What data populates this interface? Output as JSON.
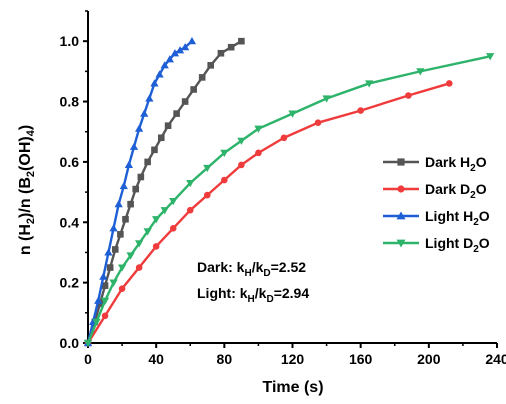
{
  "chart_data": {
    "type": "line",
    "title": "",
    "xlabel": "Time (s)",
    "ylabel": {
      "parts": [
        "n (H",
        "2",
        ")/n (B",
        "2",
        "(OH)",
        "4",
        ")"
      ]
    },
    "xlim": [
      0,
      240
    ],
    "ylim": [
      0,
      1.1
    ],
    "xticks": [
      "0",
      "40",
      "80",
      "120",
      "160",
      "200",
      "240"
    ],
    "yticks": [
      "0.0",
      "0.2",
      "0.4",
      "0.6",
      "0.8",
      "1.0"
    ],
    "legend_position": "right",
    "series": [
      {
        "name": "Dark H2O",
        "label_parts": [
          "Dark H",
          "2",
          "O"
        ],
        "color": "#555555",
        "marker": "square",
        "x": [
          0,
          4,
          7,
          10,
          13,
          16,
          19,
          22,
          25,
          28,
          31,
          35,
          39,
          43,
          47,
          52,
          57,
          62,
          67,
          72,
          78,
          84,
          90
        ],
        "y": [
          0,
          0.07,
          0.13,
          0.19,
          0.25,
          0.31,
          0.36,
          0.41,
          0.46,
          0.51,
          0.55,
          0.6,
          0.64,
          0.68,
          0.72,
          0.76,
          0.8,
          0.84,
          0.88,
          0.92,
          0.96,
          0.98,
          1.0
        ]
      },
      {
        "name": "Dark D2O",
        "label_parts": [
          "Dark D",
          "2",
          "O"
        ],
        "color": "#ef3b3b",
        "marker": "circle",
        "x": [
          0,
          10,
          20,
          30,
          40,
          50,
          60,
          70,
          80,
          90,
          100,
          115,
          135,
          160,
          188,
          212
        ],
        "y": [
          0,
          0.09,
          0.18,
          0.25,
          0.32,
          0.38,
          0.44,
          0.49,
          0.54,
          0.59,
          0.63,
          0.68,
          0.73,
          0.77,
          0.82,
          0.86
        ]
      },
      {
        "name": "Light H2O",
        "label_parts": [
          "Light H",
          "2",
          "O"
        ],
        "color": "#1f5fd6",
        "marker": "triangle-up",
        "x": [
          0,
          3,
          6,
          9,
          12,
          15,
          18,
          21,
          24,
          27,
          30,
          33,
          36,
          39,
          42,
          45,
          48,
          51,
          54,
          57,
          61
        ],
        "y": [
          0,
          0.07,
          0.14,
          0.22,
          0.3,
          0.38,
          0.46,
          0.52,
          0.59,
          0.65,
          0.71,
          0.76,
          0.81,
          0.86,
          0.89,
          0.92,
          0.94,
          0.96,
          0.97,
          0.98,
          1.0
        ]
      },
      {
        "name": "Light D2O",
        "label_parts": [
          "Light D",
          "2",
          "O"
        ],
        "color": "#2db36a",
        "marker": "triangle-down",
        "x": [
          0,
          5,
          10,
          15,
          20,
          25,
          30,
          35,
          40,
          45,
          50,
          60,
          70,
          80,
          90,
          100,
          120,
          140,
          165,
          195,
          236
        ],
        "y": [
          0,
          0.07,
          0.14,
          0.2,
          0.25,
          0.29,
          0.33,
          0.37,
          0.41,
          0.44,
          0.47,
          0.53,
          0.58,
          0.63,
          0.67,
          0.71,
          0.76,
          0.81,
          0.86,
          0.9,
          0.95
        ]
      }
    ],
    "annotations": [
      {
        "parts": [
          "Dark: k",
          "H",
          "/k",
          "D",
          "=2.52"
        ]
      },
      {
        "parts": [
          "Light: k",
          "H",
          "/k",
          "D",
          "=2.94"
        ]
      }
    ]
  }
}
